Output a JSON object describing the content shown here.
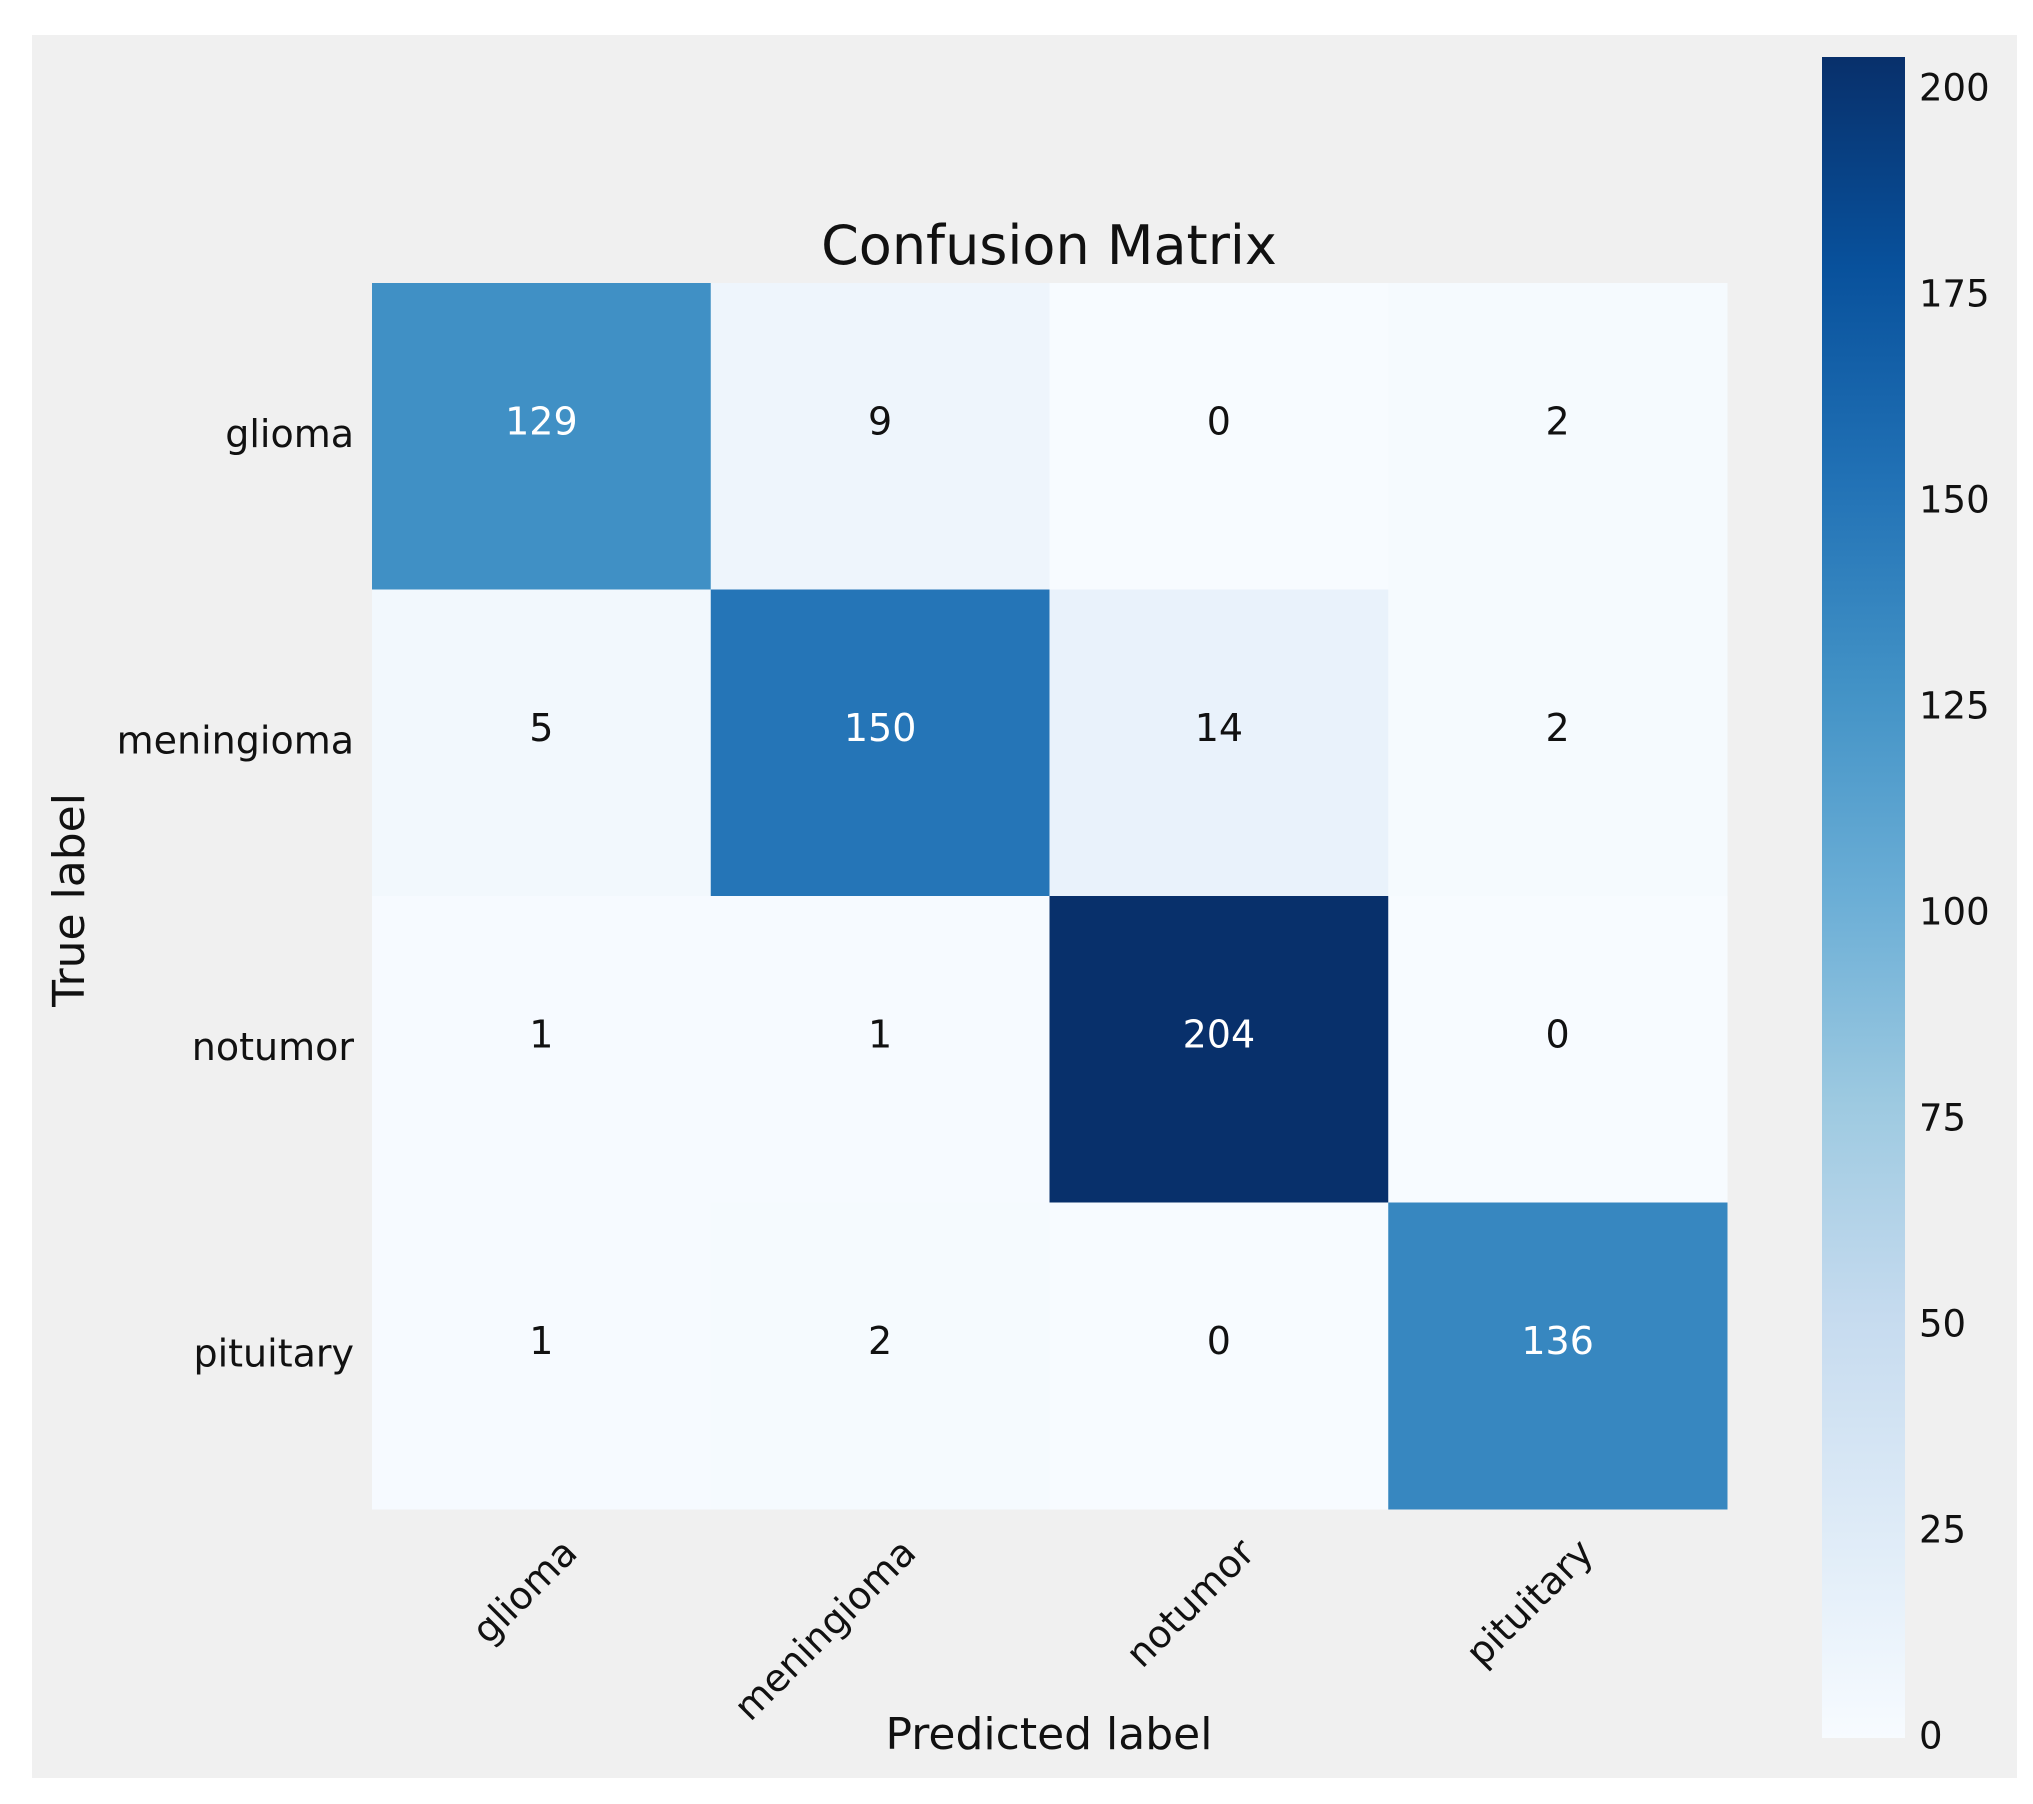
{
  "chart_data": {
    "type": "heatmap",
    "title": "Confusion Matrix",
    "xlabel": "Predicted label",
    "ylabel": "True label",
    "x_categories": [
      "glioma",
      "meningioma",
      "notumor",
      "pituitary"
    ],
    "y_categories": [
      "glioma",
      "meningioma",
      "notumor",
      "pituitary"
    ],
    "values": [
      [
        129,
        9,
        0,
        2
      ],
      [
        5,
        150,
        14,
        2
      ],
      [
        1,
        1,
        204,
        0
      ],
      [
        1,
        2,
        0,
        136
      ]
    ],
    "colorbar": {
      "min": 0,
      "max": 204,
      "ticks": [
        0,
        25,
        50,
        75,
        100,
        125,
        150,
        175,
        200
      ],
      "colormap": "Blues"
    },
    "grid": false
  },
  "colors": {
    "figure_background": "#f0f0f0",
    "page_background": "#ffffff",
    "light_text": "#ffffff",
    "dark_text": "#111111"
  }
}
